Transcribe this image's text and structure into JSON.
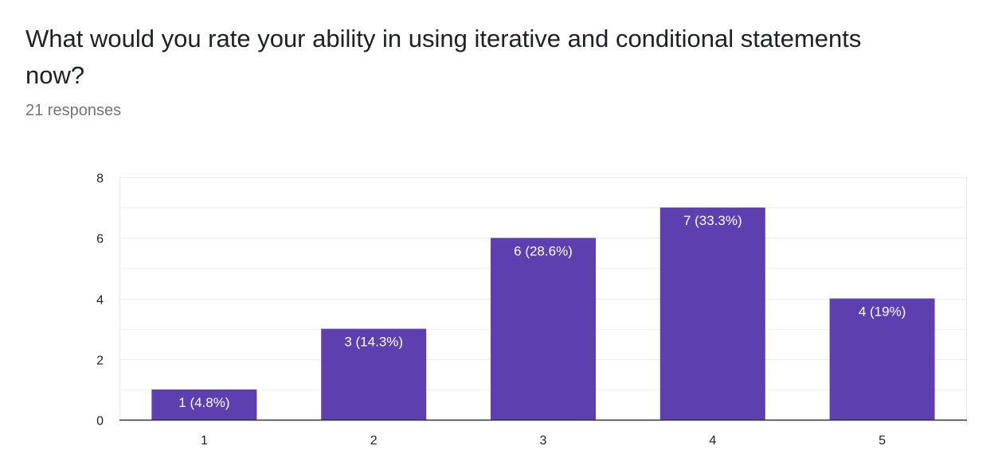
{
  "question": {
    "title": "What would you rate your ability in using iterative and conditional statements now?",
    "responses": "21 responses"
  },
  "colors": {
    "bar": "#5e3fb0",
    "bar_label": "#ffffff",
    "grid": "#ebebeb",
    "axis": "#333333",
    "tick_text": "#222222"
  },
  "chart_data": {
    "type": "bar",
    "categories": [
      "1",
      "2",
      "3",
      "4",
      "5"
    ],
    "values": [
      1,
      3,
      6,
      7,
      4
    ],
    "data_labels": [
      "1 (4.8%)",
      "3 (14.3%)",
      "6 (28.6%)",
      "7 (33.3%)",
      "4 (19%)"
    ],
    "ylim": [
      0,
      8
    ],
    "yticks": [
      0,
      2,
      4,
      6,
      8
    ],
    "minor_gridlines": true,
    "title": "",
    "xlabel": "",
    "ylabel": ""
  }
}
